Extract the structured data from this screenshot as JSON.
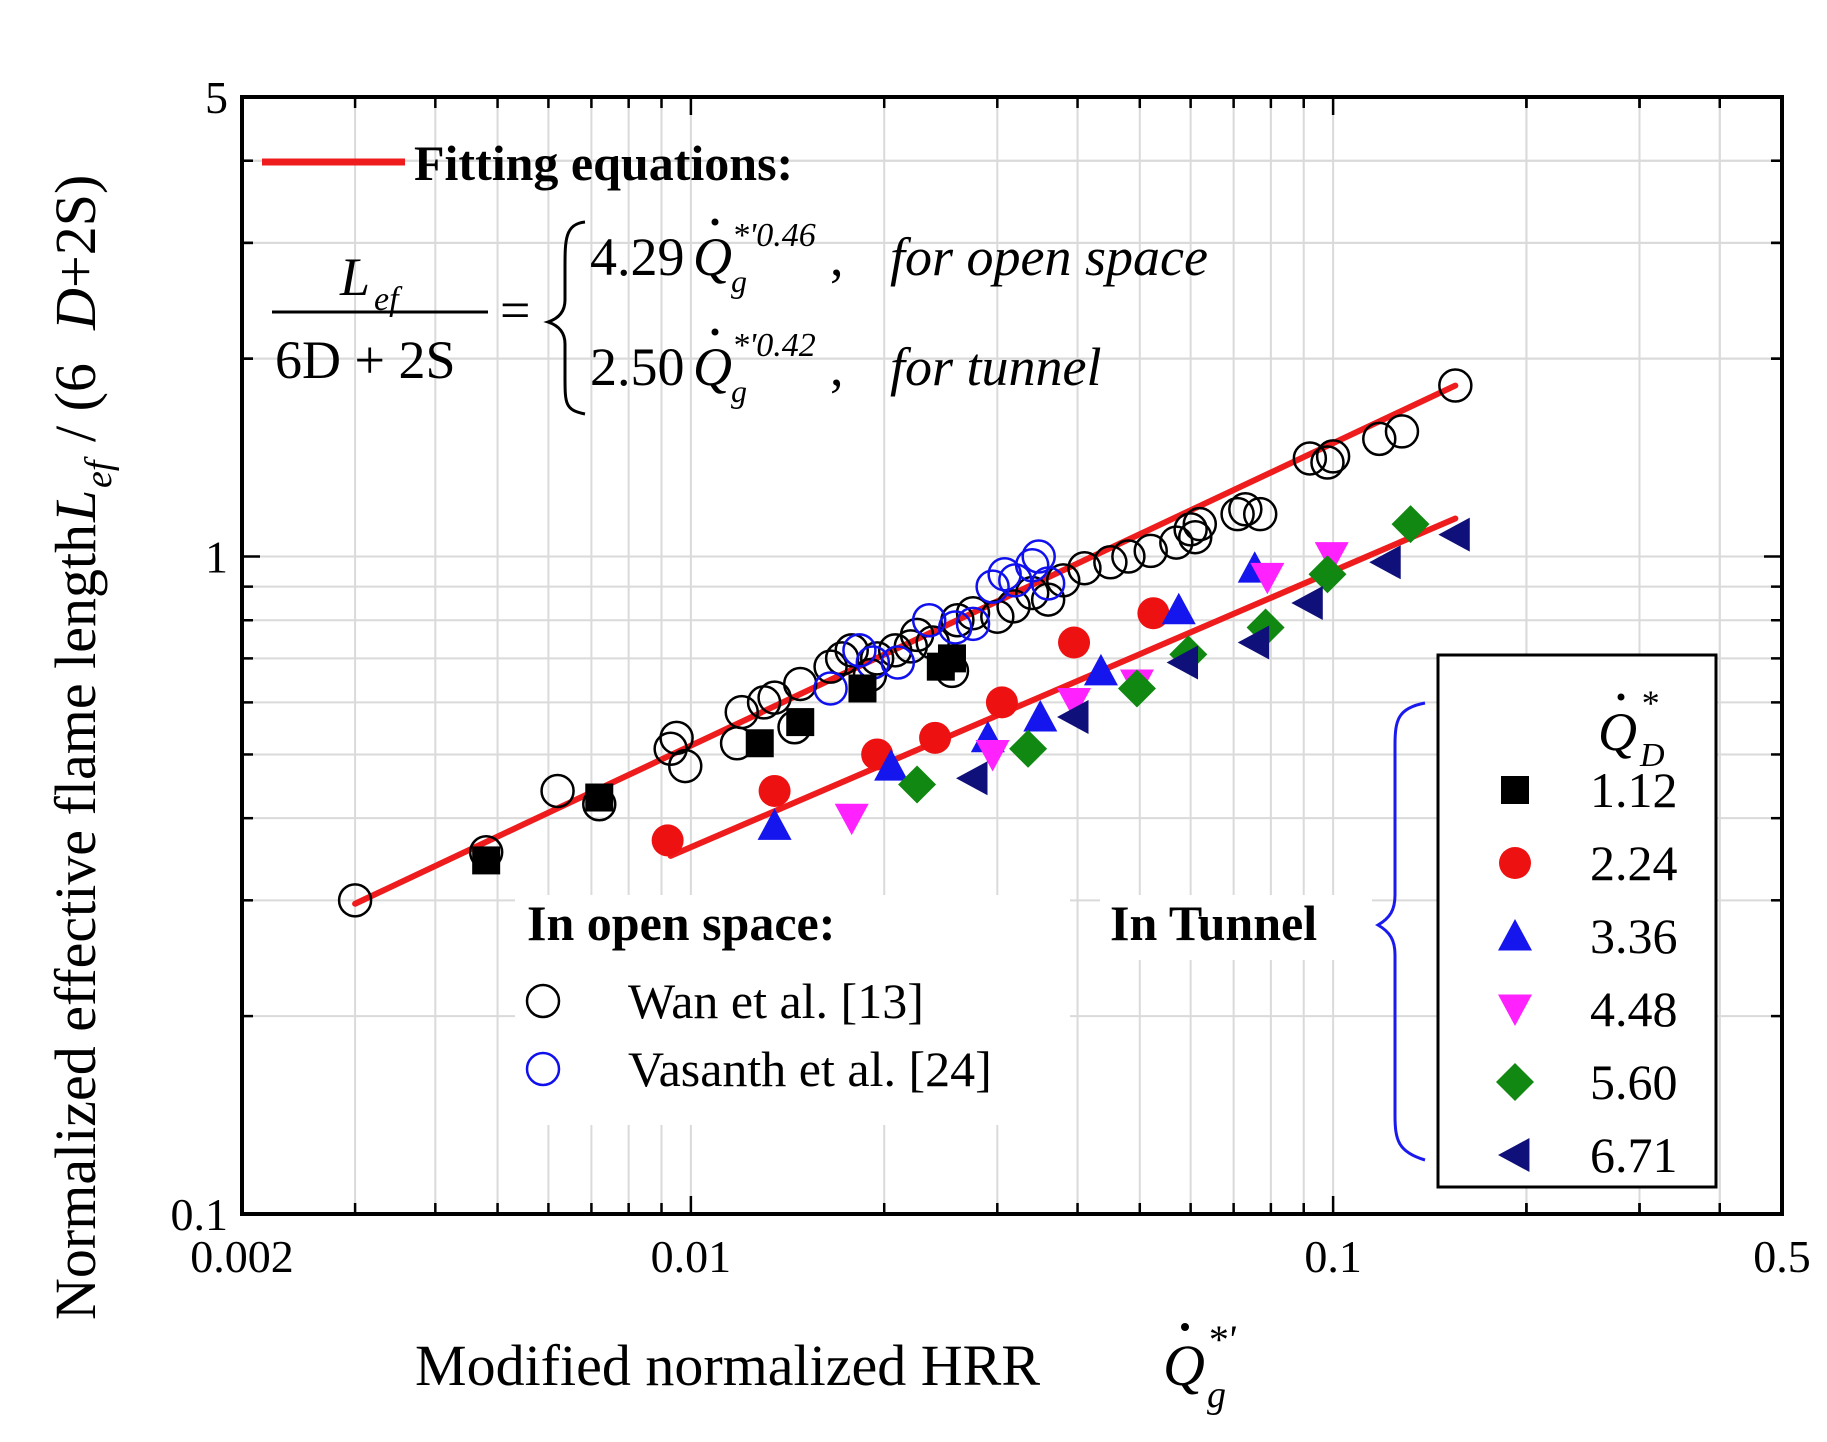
{
  "chart_data": {
    "type": "scatter",
    "xscale": "log",
    "yscale": "log",
    "xlim": [
      0.002,
      0.5
    ],
    "ylim": [
      0.1,
      5
    ],
    "xticks": [
      "0.002",
      "0.01",
      "0.1",
      "0.5"
    ],
    "yticks": [
      "0.1",
      "1",
      "5"
    ],
    "xlabel": "Modified normalized HRR",
    "ylabel": "Normalized effective flame length",
    "grid": true,
    "fitting": {
      "heading": "Fitting equations:",
      "lhs_numerator": "L",
      "lhs_numerator_sub": "ef",
      "lhs_denominator": "6D + 2S",
      "open": {
        "coef": "4.29",
        "exp": "*'0.46",
        "label": "for open space",
        "a": 4.29,
        "b": 0.46,
        "x_range": [
          0.003,
          0.155
        ]
      },
      "tunnel": {
        "coef": "2.50",
        "exp": "*'0.42",
        "label": "for tunnel",
        "a": 2.5,
        "b": 0.42,
        "x_range": [
          0.0093,
          0.155
        ]
      },
      "color": "#ee1c1c"
    },
    "open_space_label": "In open space:",
    "tunnel_label": "In Tunnel",
    "series": [
      {
        "name": "Wan et al. [13]",
        "marker": "open-circle",
        "color": "#000000",
        "points": [
          [
            0.003,
            0.3
          ],
          [
            0.0048,
            0.355
          ],
          [
            0.0062,
            0.44
          ],
          [
            0.0072,
            0.42
          ],
          [
            0.0093,
            0.51
          ],
          [
            0.0095,
            0.53
          ],
          [
            0.0098,
            0.48
          ],
          [
            0.0118,
            0.52
          ],
          [
            0.012,
            0.58
          ],
          [
            0.013,
            0.6
          ],
          [
            0.0135,
            0.61
          ],
          [
            0.0145,
            0.55
          ],
          [
            0.0148,
            0.64
          ],
          [
            0.0165,
            0.68
          ],
          [
            0.0172,
            0.7
          ],
          [
            0.0178,
            0.72
          ],
          [
            0.019,
            0.66
          ],
          [
            0.0195,
            0.7
          ],
          [
            0.0208,
            0.72
          ],
          [
            0.022,
            0.73
          ],
          [
            0.0225,
            0.76
          ],
          [
            0.0238,
            0.74
          ],
          [
            0.0255,
            0.67
          ],
          [
            0.026,
            0.8
          ],
          [
            0.0275,
            0.82
          ],
          [
            0.03,
            0.81
          ],
          [
            0.0318,
            0.84
          ],
          [
            0.034,
            0.88
          ],
          [
            0.036,
            0.86
          ],
          [
            0.038,
            0.92
          ],
          [
            0.041,
            0.96
          ],
          [
            0.045,
            0.98
          ],
          [
            0.048,
            1.0
          ],
          [
            0.052,
            1.02
          ],
          [
            0.057,
            1.05
          ],
          [
            0.06,
            1.1
          ],
          [
            0.062,
            1.12
          ],
          [
            0.061,
            1.07
          ],
          [
            0.071,
            1.16
          ],
          [
            0.073,
            1.18
          ],
          [
            0.077,
            1.16
          ],
          [
            0.092,
            1.41
          ],
          [
            0.098,
            1.39
          ],
          [
            0.1,
            1.42
          ],
          [
            0.118,
            1.51
          ],
          [
            0.128,
            1.55
          ],
          [
            0.155,
            1.82
          ]
        ]
      },
      {
        "name": "Vasanth et al. [24]",
        "marker": "open-circle",
        "color": "#1010ee",
        "points": [
          [
            0.0165,
            0.63
          ],
          [
            0.0183,
            0.72
          ],
          [
            0.0192,
            0.69
          ],
          [
            0.021,
            0.69
          ],
          [
            0.0235,
            0.8
          ],
          [
            0.0258,
            0.78
          ],
          [
            0.0275,
            0.79
          ],
          [
            0.0295,
            0.9
          ],
          [
            0.0308,
            0.94
          ],
          [
            0.032,
            0.92
          ],
          [
            0.034,
            0.97
          ],
          [
            0.0348,
            1.0
          ],
          [
            0.036,
            0.91
          ]
        ]
      },
      {
        "name": "1.12",
        "marker": "square",
        "color": "#000000",
        "points": [
          [
            0.0048,
            0.345
          ],
          [
            0.0072,
            0.43
          ],
          [
            0.0128,
            0.52
          ],
          [
            0.0148,
            0.56
          ],
          [
            0.0185,
            0.63
          ],
          [
            0.0245,
            0.68
          ],
          [
            0.0255,
            0.7
          ]
        ]
      },
      {
        "name": "2.24",
        "marker": "circle",
        "color": "#ee1111",
        "points": [
          [
            0.0092,
            0.37
          ],
          [
            0.0135,
            0.44
          ],
          [
            0.0195,
            0.5
          ],
          [
            0.024,
            0.53
          ],
          [
            0.0305,
            0.6
          ],
          [
            0.0395,
            0.74
          ],
          [
            0.0525,
            0.82
          ]
        ]
      },
      {
        "name": "3.36",
        "marker": "triangle-up",
        "color": "#1515ee",
        "points": [
          [
            0.0135,
            0.39
          ],
          [
            0.0205,
            0.48
          ],
          [
            0.029,
            0.53
          ],
          [
            0.035,
            0.57
          ],
          [
            0.0435,
            0.67
          ],
          [
            0.0575,
            0.83
          ],
          [
            0.0755,
            0.96
          ]
        ]
      },
      {
        "name": "4.48",
        "marker": "triangle-down",
        "color": "#ff22ff",
        "points": [
          [
            0.0178,
            0.4
          ],
          [
            0.0295,
            0.5
          ],
          [
            0.0395,
            0.6
          ],
          [
            0.0495,
            0.64
          ],
          [
            0.079,
            0.93
          ],
          [
            0.0995,
            1.0
          ]
        ]
      },
      {
        "name": "5.60",
        "marker": "diamond",
        "color": "#118811",
        "points": [
          [
            0.0225,
            0.45
          ],
          [
            0.0335,
            0.51
          ],
          [
            0.0495,
            0.63
          ],
          [
            0.0595,
            0.71
          ],
          [
            0.0785,
            0.78
          ],
          [
            0.098,
            0.94
          ],
          [
            0.132,
            1.12
          ]
        ]
      },
      {
        "name": "6.71",
        "marker": "triangle-left",
        "color": "#10107a",
        "points": [
          [
            0.0275,
            0.46
          ],
          [
            0.0395,
            0.57
          ],
          [
            0.0585,
            0.69
          ],
          [
            0.0755,
            0.74
          ],
          [
            0.0915,
            0.85
          ],
          [
            0.121,
            0.98
          ],
          [
            0.155,
            1.08
          ]
        ]
      }
    ],
    "legend_title": "Q",
    "legend_title_sub": "D",
    "legend_title_sup": "*",
    "legend_placement": "bottom-right",
    "bracket_color": "#1a1aee"
  }
}
